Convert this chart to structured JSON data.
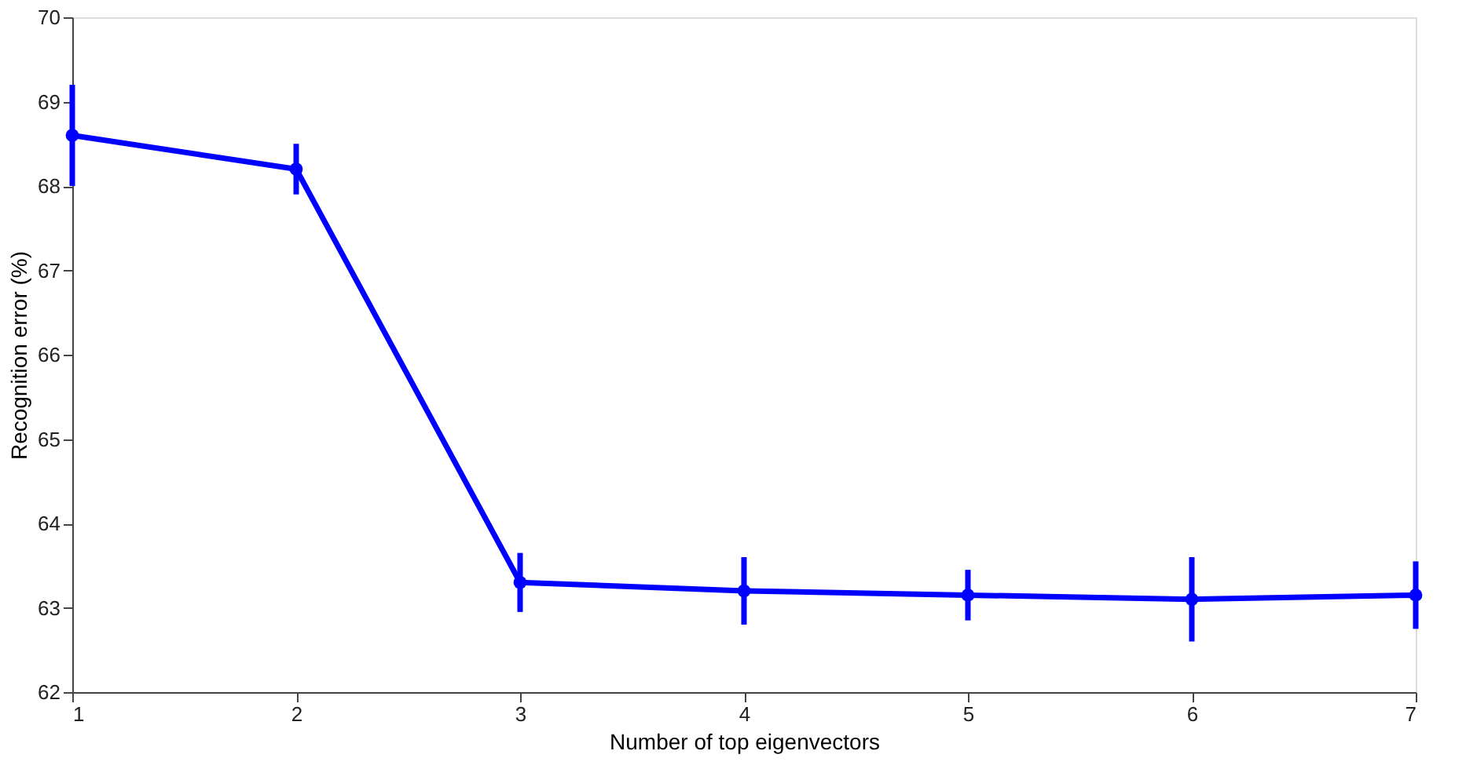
{
  "chart_data": {
    "type": "line",
    "xlabel": "Number of top eigenvectors",
    "ylabel": "Recognition error (%)",
    "x": [
      1,
      2,
      3,
      4,
      5,
      6,
      7
    ],
    "series": [
      {
        "color": "#0000ff",
        "values": [
          68.6,
          68.2,
          63.3,
          63.2,
          63.15,
          63.1,
          63.15
        ],
        "errors": [
          0.6,
          0.3,
          0.35,
          0.4,
          0.3,
          0.5,
          0.4
        ]
      }
    ],
    "xlim": [
      1,
      7
    ],
    "xticks": [
      1,
      2,
      3,
      4,
      5,
      6,
      7
    ],
    "ylim": [
      62,
      70
    ],
    "yticks": [
      62,
      63,
      64,
      65,
      66,
      67,
      68,
      69,
      70
    ],
    "grid": false,
    "marker": "circle",
    "line_style": "solid"
  }
}
